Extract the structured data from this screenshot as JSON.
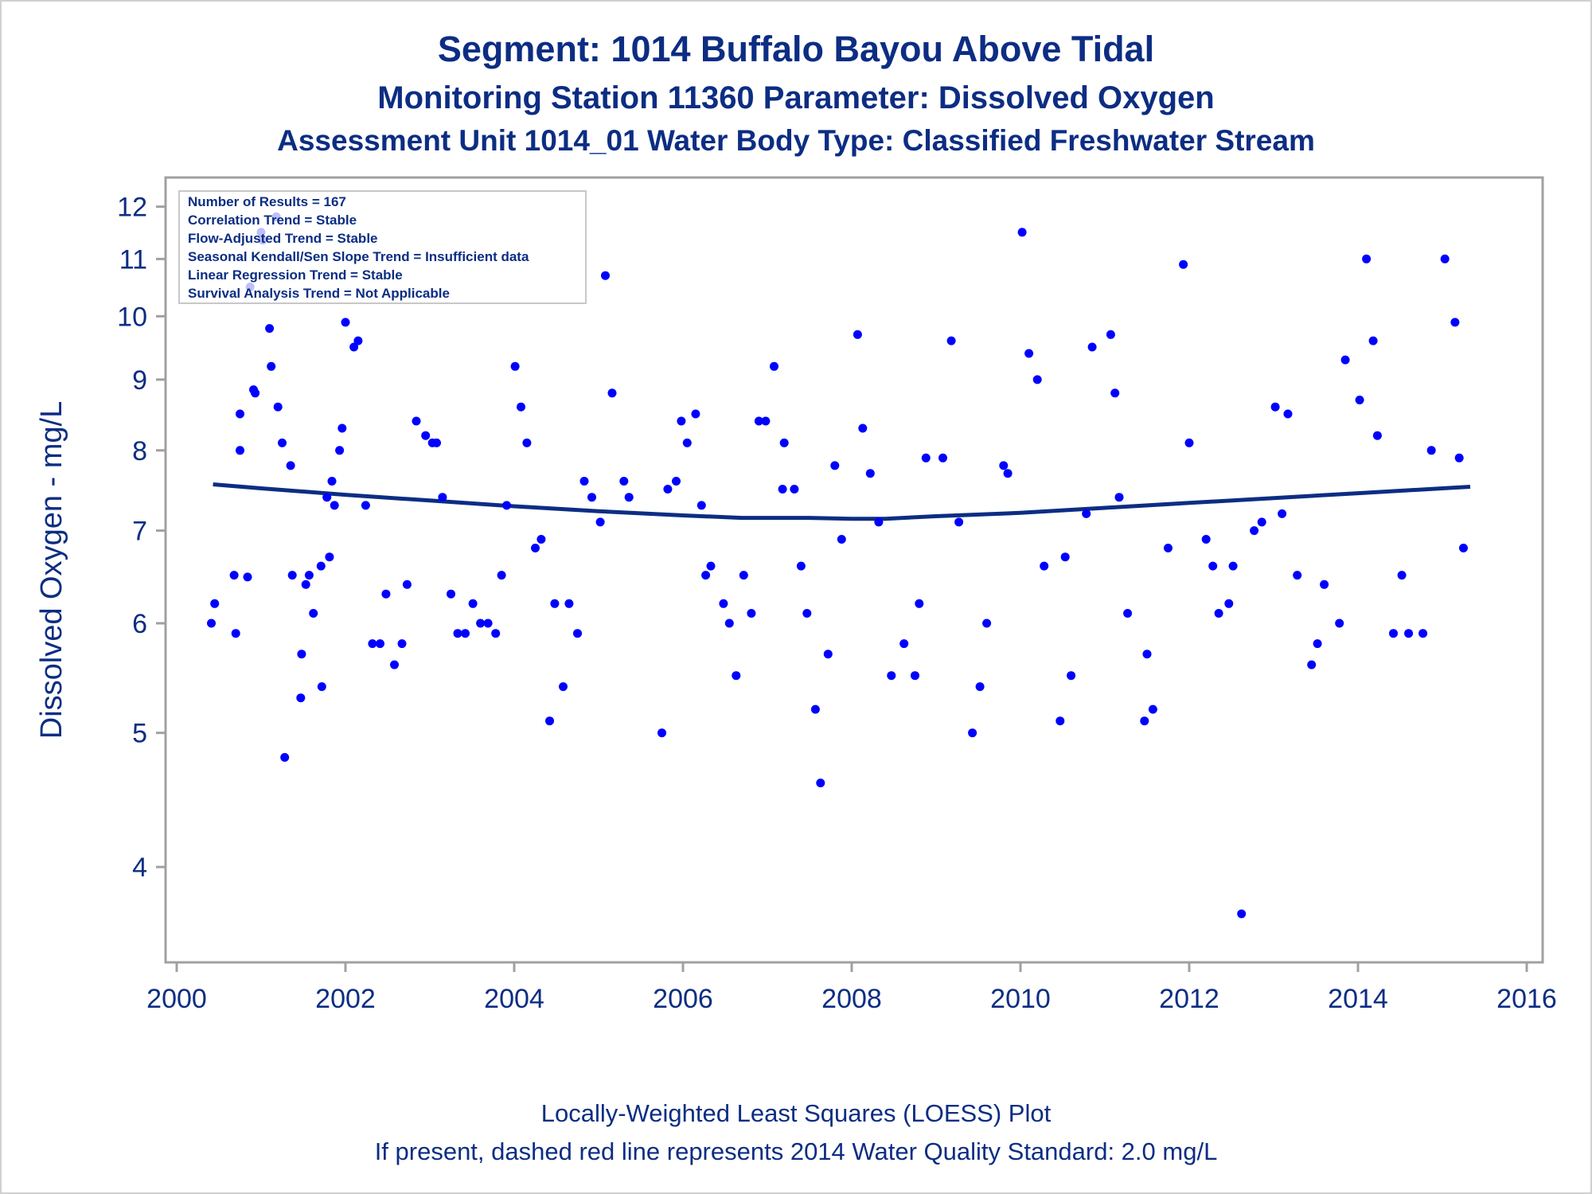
{
  "title": "Segment: 1014  Buffalo Bayou Above Tidal",
  "subtitle": "Monitoring Station 11360 Parameter: Dissolved Oxygen",
  "subtitle2": "Assessment Unit 1014_01   Water Body Type: Classified Freshwater Stream",
  "footnote1": "Locally-Weighted Least Squares (LOESS) Plot",
  "footnote2": "If present, dashed red line represents 2014 Water Quality Standard: 2.0 mg/L",
  "stats_box": [
    "Number of Results = 167",
    "Correlation Trend = Stable",
    "Flow-Adjusted Trend = Stable",
    "Seasonal Kendall/Sen Slope Trend = Insufficient data",
    "Linear Regression Trend = Stable",
    "Survival Analysis Trend = Not Applicable"
  ],
  "colors": {
    "points": "#0000ff",
    "loess": "#0c2d83",
    "text": "#0c2d83",
    "axis": "#a0a0a0"
  },
  "chart_data": {
    "type": "scatter",
    "xlabel": "",
    "ylabel": "Dissolved Oxygen - mg/L",
    "y_scale": "log",
    "xlim": [
      2000,
      2016
    ],
    "ylim": [
      3.5,
      12.3
    ],
    "x_ticks": [
      2000,
      2002,
      2004,
      2006,
      2008,
      2010,
      2012,
      2014,
      2016
    ],
    "y_ticks": [
      4,
      5,
      6,
      7,
      8,
      9,
      10,
      11,
      12
    ],
    "points": [
      [
        2000.41,
        6.0
      ],
      [
        2000.45,
        6.2
      ],
      [
        2000.68,
        6.5
      ],
      [
        2000.7,
        5.9
      ],
      [
        2000.75,
        8.5
      ],
      [
        2000.75,
        8.0
      ],
      [
        2000.84,
        6.48
      ],
      [
        2000.87,
        10.5
      ],
      [
        2000.91,
        8.85
      ],
      [
        2000.93,
        8.8
      ],
      [
        2001.0,
        11.5
      ],
      [
        2001.02,
        11.35
      ],
      [
        2001.1,
        9.8
      ],
      [
        2001.12,
        9.2
      ],
      [
        2001.18,
        11.8
      ],
      [
        2001.2,
        8.6
      ],
      [
        2001.25,
        8.1
      ],
      [
        2001.28,
        4.8
      ],
      [
        2001.35,
        7.8
      ],
      [
        2001.37,
        6.5
      ],
      [
        2001.47,
        5.3
      ],
      [
        2001.48,
        5.7
      ],
      [
        2001.53,
        6.4
      ],
      [
        2001.57,
        6.5
      ],
      [
        2001.62,
        6.1
      ],
      [
        2001.71,
        6.6
      ],
      [
        2001.72,
        5.4
      ],
      [
        2001.78,
        7.4
      ],
      [
        2001.81,
        6.7
      ],
      [
        2001.84,
        7.6
      ],
      [
        2001.87,
        7.3
      ],
      [
        2001.93,
        8.0
      ],
      [
        2001.96,
        8.3
      ],
      [
        2002.0,
        9.9
      ],
      [
        2002.1,
        9.5
      ],
      [
        2002.15,
        9.6
      ],
      [
        2002.24,
        7.3
      ],
      [
        2002.32,
        5.8
      ],
      [
        2002.41,
        5.8
      ],
      [
        2002.48,
        6.3
      ],
      [
        2002.58,
        5.6
      ],
      [
        2002.67,
        5.8
      ],
      [
        2002.73,
        6.4
      ],
      [
        2002.84,
        8.4
      ],
      [
        2002.95,
        8.2
      ],
      [
        2003.03,
        8.1
      ],
      [
        2003.08,
        8.1
      ],
      [
        2003.15,
        7.4
      ],
      [
        2003.25,
        6.3
      ],
      [
        2003.33,
        5.9
      ],
      [
        2003.42,
        5.9
      ],
      [
        2003.51,
        6.2
      ],
      [
        2003.6,
        6.0
      ],
      [
        2003.69,
        6.0
      ],
      [
        2003.78,
        5.9
      ],
      [
        2003.85,
        6.5
      ],
      [
        2003.91,
        7.3
      ],
      [
        2004.01,
        9.2
      ],
      [
        2004.08,
        8.6
      ],
      [
        2004.15,
        8.1
      ],
      [
        2004.25,
        6.8
      ],
      [
        2004.32,
        6.9
      ],
      [
        2004.42,
        5.1
      ],
      [
        2004.48,
        6.2
      ],
      [
        2004.58,
        5.4
      ],
      [
        2004.65,
        6.2
      ],
      [
        2004.75,
        5.9
      ],
      [
        2004.83,
        7.6
      ],
      [
        2004.92,
        7.4
      ],
      [
        2005.02,
        7.1
      ],
      [
        2005.08,
        10.7
      ],
      [
        2005.16,
        8.8
      ],
      [
        2005.3,
        7.6
      ],
      [
        2005.36,
        7.4
      ],
      [
        2005.75,
        5.0
      ],
      [
        2005.82,
        7.5
      ],
      [
        2005.92,
        7.6
      ],
      [
        2005.98,
        8.4
      ],
      [
        2006.05,
        8.1
      ],
      [
        2006.15,
        8.5
      ],
      [
        2006.22,
        7.3
      ],
      [
        2006.27,
        6.5
      ],
      [
        2006.33,
        6.6
      ],
      [
        2006.48,
        6.2
      ],
      [
        2006.55,
        6.0
      ],
      [
        2006.63,
        5.5
      ],
      [
        2006.72,
        6.5
      ],
      [
        2006.81,
        6.1
      ],
      [
        2006.9,
        8.4
      ],
      [
        2006.98,
        8.4
      ],
      [
        2007.08,
        9.2
      ],
      [
        2007.18,
        7.5
      ],
      [
        2007.2,
        8.1
      ],
      [
        2007.32,
        7.5
      ],
      [
        2007.4,
        6.6
      ],
      [
        2007.47,
        6.1
      ],
      [
        2007.57,
        5.2
      ],
      [
        2007.63,
        4.6
      ],
      [
        2007.72,
        5.7
      ],
      [
        2007.8,
        7.8
      ],
      [
        2007.88,
        6.9
      ],
      [
        2008.07,
        9.7
      ],
      [
        2008.13,
        8.3
      ],
      [
        2008.22,
        7.7
      ],
      [
        2008.32,
        7.1
      ],
      [
        2008.47,
        5.5
      ],
      [
        2008.62,
        5.8
      ],
      [
        2008.75,
        5.5
      ],
      [
        2008.8,
        6.2
      ],
      [
        2008.88,
        7.9
      ],
      [
        2009.08,
        7.9
      ],
      [
        2009.18,
        9.6
      ],
      [
        2009.27,
        7.1
      ],
      [
        2009.43,
        5.0
      ],
      [
        2009.52,
        5.4
      ],
      [
        2009.6,
        6.0
      ],
      [
        2009.8,
        7.8
      ],
      [
        2009.85,
        7.7
      ],
      [
        2010.02,
        11.5
      ],
      [
        2010.1,
        9.4
      ],
      [
        2010.2,
        9.0
      ],
      [
        2010.28,
        6.6
      ],
      [
        2010.47,
        5.1
      ],
      [
        2010.53,
        6.7
      ],
      [
        2010.6,
        5.5
      ],
      [
        2010.78,
        7.2
      ],
      [
        2010.85,
        9.5
      ],
      [
        2011.07,
        9.7
      ],
      [
        2011.12,
        8.8
      ],
      [
        2011.17,
        7.4
      ],
      [
        2011.27,
        6.1
      ],
      [
        2011.47,
        5.1
      ],
      [
        2011.5,
        5.7
      ],
      [
        2011.57,
        5.2
      ],
      [
        2011.75,
        6.8
      ],
      [
        2011.93,
        10.9
      ],
      [
        2012.0,
        8.1
      ],
      [
        2012.2,
        6.9
      ],
      [
        2012.28,
        6.6
      ],
      [
        2012.35,
        6.1
      ],
      [
        2012.47,
        6.2
      ],
      [
        2012.52,
        6.6
      ],
      [
        2012.62,
        3.7
      ],
      [
        2012.77,
        7.0
      ],
      [
        2012.86,
        7.1
      ],
      [
        2013.02,
        8.6
      ],
      [
        2013.1,
        7.2
      ],
      [
        2013.17,
        8.5
      ],
      [
        2013.28,
        6.5
      ],
      [
        2013.45,
        5.6
      ],
      [
        2013.52,
        5.8
      ],
      [
        2013.6,
        6.4
      ],
      [
        2013.78,
        6.0
      ],
      [
        2013.85,
        9.3
      ],
      [
        2014.02,
        8.7
      ],
      [
        2014.1,
        11.0
      ],
      [
        2014.18,
        9.6
      ],
      [
        2014.23,
        8.2
      ],
      [
        2014.42,
        5.9
      ],
      [
        2014.52,
        6.5
      ],
      [
        2014.6,
        5.9
      ],
      [
        2014.77,
        5.9
      ],
      [
        2014.87,
        8.0
      ],
      [
        2015.03,
        11.0
      ],
      [
        2015.15,
        9.9
      ],
      [
        2015.2,
        7.9
      ],
      [
        2015.25,
        6.8
      ]
    ],
    "loess": [
      [
        2000.43,
        7.56
      ],
      [
        2001.0,
        7.51
      ],
      [
        2002.0,
        7.43
      ],
      [
        2003.0,
        7.36
      ],
      [
        2004.0,
        7.29
      ],
      [
        2005.0,
        7.23
      ],
      [
        2006.0,
        7.18
      ],
      [
        2006.7,
        7.15
      ],
      [
        2007.5,
        7.15
      ],
      [
        2008.0,
        7.14
      ],
      [
        2008.4,
        7.14
      ],
      [
        2009.0,
        7.17
      ],
      [
        2010.0,
        7.21
      ],
      [
        2011.0,
        7.27
      ],
      [
        2012.0,
        7.33
      ],
      [
        2013.0,
        7.39
      ],
      [
        2014.0,
        7.45
      ],
      [
        2015.0,
        7.51
      ],
      [
        2015.33,
        7.53
      ]
    ]
  }
}
